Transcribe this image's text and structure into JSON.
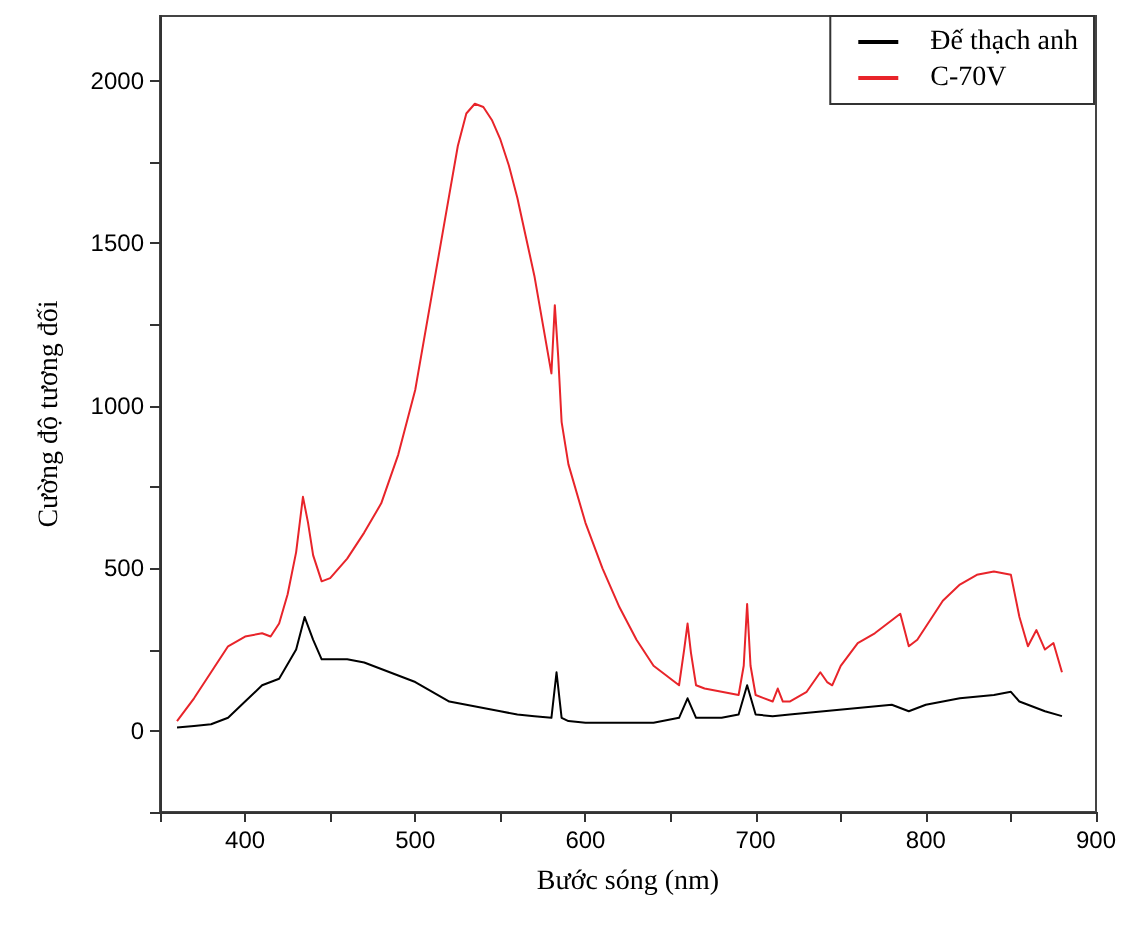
{
  "chart_data": {
    "type": "line",
    "xlabel": "Bước sóng (nm)",
    "ylabel": "Cường độ tương đối",
    "xlim": [
      350,
      900
    ],
    "xticks": [
      {
        "value": 350,
        "label": null
      },
      400,
      {
        "value": 450,
        "label": null
      },
      500,
      {
        "value": 550,
        "label": null
      },
      600,
      {
        "value": 650,
        "label": null
      },
      700,
      {
        "value": 750,
        "label": null
      },
      800,
      {
        "value": 850,
        "label": null
      },
      900
    ],
    "ylim": [
      -250,
      2200
    ],
    "yticks": [
      {
        "value": -250,
        "label": null
      },
      0,
      {
        "value": 250,
        "label": null
      },
      500,
      {
        "value": 750,
        "label": null
      },
      1000,
      {
        "value": 1250,
        "label": null
      },
      1500,
      {
        "value": 1750,
        "label": null
      },
      2000
    ],
    "grid": false,
    "legend": "top right",
    "marker": "none",
    "line_style": "solid",
    "series": [
      {
        "name": "Đế thạch anh",
        "color": "#000000",
        "x": [
          360,
          370,
          380,
          390,
          400,
          410,
          420,
          430,
          435,
          440,
          445,
          460,
          470,
          480,
          490,
          500,
          510,
          520,
          530,
          540,
          550,
          560,
          570,
          580,
          583,
          586,
          590,
          600,
          620,
          640,
          655,
          660,
          665,
          680,
          690,
          695,
          700,
          710,
          720,
          740,
          760,
          780,
          790,
          800,
          820,
          840,
          850,
          855,
          860,
          870,
          880
        ],
        "values": [
          10,
          15,
          20,
          40,
          90,
          140,
          160,
          250,
          350,
          280,
          220,
          220,
          210,
          190,
          170,
          150,
          120,
          90,
          80,
          70,
          60,
          50,
          45,
          40,
          180,
          40,
          30,
          25,
          25,
          25,
          40,
          100,
          40,
          40,
          50,
          140,
          50,
          45,
          50,
          60,
          70,
          80,
          60,
          80,
          100,
          110,
          120,
          90,
          80,
          60,
          45
        ]
      },
      {
        "name": "C-70V",
        "color": "#e8242a",
        "x": [
          360,
          370,
          380,
          390,
          400,
          410,
          415,
          420,
          425,
          430,
          434,
          437,
          440,
          445,
          450,
          460,
          470,
          480,
          490,
          500,
          510,
          520,
          525,
          530,
          535,
          540,
          545,
          550,
          555,
          560,
          565,
          570,
          575,
          580,
          582,
          584,
          586,
          590,
          600,
          610,
          620,
          630,
          640,
          650,
          655,
          658,
          660,
          662,
          665,
          670,
          680,
          690,
          693,
          695,
          697,
          700,
          710,
          713,
          716,
          720,
          730,
          738,
          742,
          745,
          750,
          760,
          770,
          780,
          785,
          790,
          795,
          800,
          810,
          820,
          830,
          840,
          850,
          855,
          860,
          865,
          870,
          875,
          880
        ],
        "values": [
          30,
          100,
          180,
          260,
          290,
          300,
          290,
          330,
          420,
          550,
          720,
          640,
          540,
          460,
          470,
          530,
          610,
          700,
          850,
          1050,
          1350,
          1650,
          1800,
          1900,
          1930,
          1920,
          1880,
          1820,
          1740,
          1640,
          1520,
          1400,
          1250,
          1100,
          1310,
          1150,
          950,
          820,
          640,
          500,
          380,
          280,
          200,
          160,
          140,
          250,
          330,
          240,
          140,
          130,
          120,
          110,
          200,
          390,
          200,
          110,
          90,
          130,
          90,
          90,
          120,
          180,
          150,
          140,
          200,
          270,
          300,
          340,
          360,
          260,
          280,
          320,
          400,
          450,
          480,
          490,
          480,
          350,
          260,
          310,
          250,
          270,
          180
        ]
      }
    ]
  }
}
